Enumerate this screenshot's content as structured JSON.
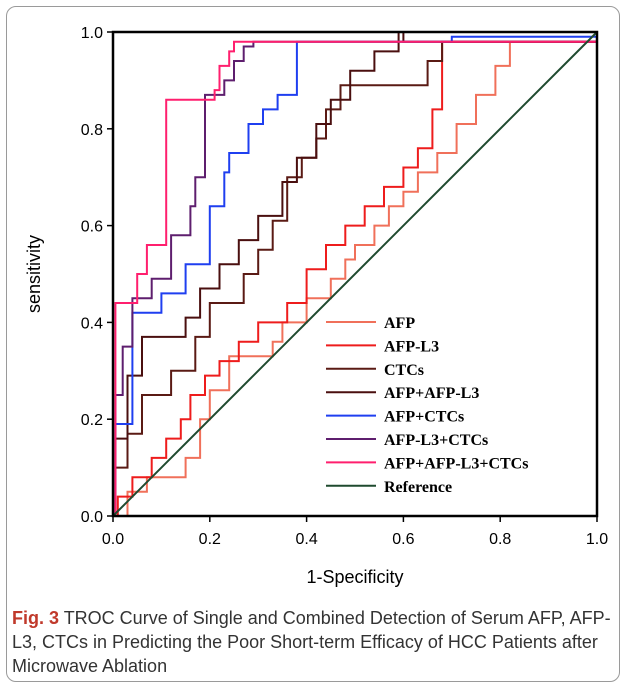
{
  "caption": {
    "label": "Fig. 3",
    "text": " TROC Curve of Single and Combined Detection of Serum AFP, AFP-L3, CTCs in Predicting the Poor Short-term Efficacy of HCC Patients after Microwave Ablation"
  },
  "chart_data": {
    "type": "line",
    "title": "",
    "xlabel": "1-Specificity",
    "ylabel": "sensitivity",
    "xlim": [
      0,
      1
    ],
    "ylim": [
      0,
      1
    ],
    "xticks": [
      "0.0",
      "0.2",
      "0.4",
      "0.6",
      "0.8",
      "1.0"
    ],
    "yticks": [
      "0.0",
      "0.2",
      "0.4",
      "0.6",
      "0.8",
      "1.0"
    ],
    "grid": false,
    "legend_position": "bottom-right",
    "series": [
      {
        "name": "AFP",
        "color": "#f0705a",
        "x": [
          0,
          0.03,
          0.03,
          0.07,
          0.07,
          0.15,
          0.15,
          0.18,
          0.18,
          0.2,
          0.2,
          0.24,
          0.24,
          0.33,
          0.33,
          0.35,
          0.35,
          0.4,
          0.4,
          0.45,
          0.45,
          0.48,
          0.48,
          0.5,
          0.5,
          0.54,
          0.54,
          0.57,
          0.57,
          0.6,
          0.6,
          0.63,
          0.63,
          0.67,
          0.67,
          0.71,
          0.71,
          0.75,
          0.75,
          0.79,
          0.79,
          0.82,
          0.82,
          1.0
        ],
        "y": [
          0,
          0,
          0.05,
          0.05,
          0.08,
          0.08,
          0.12,
          0.12,
          0.2,
          0.2,
          0.26,
          0.26,
          0.33,
          0.33,
          0.36,
          0.36,
          0.4,
          0.4,
          0.45,
          0.45,
          0.49,
          0.49,
          0.53,
          0.53,
          0.56,
          0.56,
          0.6,
          0.6,
          0.64,
          0.64,
          0.67,
          0.67,
          0.71,
          0.71,
          0.75,
          0.75,
          0.81,
          0.81,
          0.87,
          0.87,
          0.93,
          0.93,
          0.98,
          0.98
        ]
      },
      {
        "name": "AFP-L3",
        "color": "#ee1c1c",
        "x": [
          0,
          0.01,
          0.01,
          0.04,
          0.04,
          0.08,
          0.08,
          0.11,
          0.11,
          0.14,
          0.14,
          0.16,
          0.16,
          0.19,
          0.19,
          0.22,
          0.22,
          0.26,
          0.26,
          0.3,
          0.3,
          0.36,
          0.36,
          0.4,
          0.4,
          0.44,
          0.44,
          0.48,
          0.48,
          0.52,
          0.52,
          0.56,
          0.56,
          0.6,
          0.6,
          0.63,
          0.63,
          0.66,
          0.66,
          0.68,
          0.68,
          1.0
        ],
        "y": [
          0,
          0,
          0.04,
          0.04,
          0.08,
          0.08,
          0.12,
          0.12,
          0.16,
          0.16,
          0.2,
          0.2,
          0.25,
          0.25,
          0.29,
          0.29,
          0.32,
          0.32,
          0.36,
          0.36,
          0.4,
          0.4,
          0.44,
          0.44,
          0.51,
          0.51,
          0.56,
          0.56,
          0.6,
          0.6,
          0.64,
          0.64,
          0.68,
          0.68,
          0.72,
          0.72,
          0.76,
          0.76,
          0.84,
          0.84,
          0.98,
          0.98
        ]
      },
      {
        "name": "CTCs",
        "color": "#5a1a14",
        "x": [
          0,
          0.005,
          0.005,
          0.03,
          0.03,
          0.06,
          0.06,
          0.12,
          0.12,
          0.17,
          0.17,
          0.2,
          0.2,
          0.27,
          0.27,
          0.3,
          0.3,
          0.33,
          0.33,
          0.36,
          0.36,
          0.39,
          0.39,
          0.42,
          0.42,
          0.44,
          0.44,
          0.47,
          0.47,
          0.5,
          0.5,
          0.55,
          0.55,
          0.65,
          0.65,
          0.68,
          0.68,
          1.0
        ],
        "y": [
          0,
          0,
          0.1,
          0.1,
          0.17,
          0.17,
          0.25,
          0.25,
          0.3,
          0.3,
          0.37,
          0.37,
          0.44,
          0.44,
          0.5,
          0.5,
          0.55,
          0.55,
          0.61,
          0.61,
          0.7,
          0.7,
          0.74,
          0.74,
          0.78,
          0.78,
          0.84,
          0.84,
          0.89,
          0.89,
          0.89,
          0.89,
          0.89,
          0.89,
          0.94,
          0.94,
          0.98,
          0.98
        ]
      },
      {
        "name": "AFP+AFP-L3",
        "color": "#4a0f0f",
        "x": [
          0,
          0.005,
          0.005,
          0.03,
          0.03,
          0.06,
          0.06,
          0.15,
          0.15,
          0.18,
          0.18,
          0.22,
          0.22,
          0.26,
          0.26,
          0.3,
          0.3,
          0.35,
          0.35,
          0.38,
          0.38,
          0.42,
          0.42,
          0.45,
          0.45,
          0.49,
          0.49,
          0.54,
          0.54,
          0.59,
          0.59,
          0.6,
          0.6,
          1.0
        ],
        "y": [
          0,
          0,
          0.16,
          0.16,
          0.29,
          0.29,
          0.37,
          0.37,
          0.41,
          0.41,
          0.47,
          0.47,
          0.52,
          0.52,
          0.57,
          0.57,
          0.62,
          0.62,
          0.69,
          0.69,
          0.74,
          0.74,
          0.81,
          0.81,
          0.86,
          0.86,
          0.92,
          0.92,
          0.96,
          0.96,
          1.0,
          1.0,
          0.98,
          0.98
        ]
      },
      {
        "name": "AFP+CTCs",
        "color": "#1f3ff0",
        "x": [
          0,
          0.005,
          0.005,
          0.02,
          0.02,
          0.04,
          0.04,
          0.1,
          0.1,
          0.15,
          0.15,
          0.2,
          0.2,
          0.23,
          0.23,
          0.24,
          0.24,
          0.28,
          0.28,
          0.31,
          0.31,
          0.34,
          0.34,
          0.38,
          0.38,
          0.4,
          0.4,
          0.7,
          0.7,
          1.0
        ],
        "y": [
          0,
          0,
          0.19,
          0.19,
          0.19,
          0.19,
          0.42,
          0.42,
          0.46,
          0.46,
          0.52,
          0.52,
          0.64,
          0.64,
          0.71,
          0.71,
          0.75,
          0.75,
          0.81,
          0.81,
          0.84,
          0.84,
          0.87,
          0.87,
          0.98,
          0.98,
          0.98,
          0.98,
          0.99,
          0.99
        ]
      },
      {
        "name": "AFP-L3+CTCs",
        "color": "#5e1e6e",
        "x": [
          0,
          0.005,
          0.005,
          0.02,
          0.02,
          0.04,
          0.04,
          0.06,
          0.06,
          0.08,
          0.08,
          0.12,
          0.12,
          0.16,
          0.16,
          0.17,
          0.17,
          0.19,
          0.19,
          0.2,
          0.2,
          0.23,
          0.23,
          0.25,
          0.25,
          0.27,
          0.27,
          0.29,
          0.29,
          1.0
        ],
        "y": [
          0,
          0,
          0.25,
          0.25,
          0.35,
          0.35,
          0.45,
          0.45,
          0.45,
          0.45,
          0.49,
          0.49,
          0.58,
          0.58,
          0.64,
          0.64,
          0.7,
          0.7,
          0.87,
          0.87,
          0.87,
          0.87,
          0.9,
          0.9,
          0.94,
          0.94,
          0.97,
          0.97,
          0.98,
          0.98
        ]
      },
      {
        "name": "AFP+AFP-L3+CTCs",
        "color": "#ff1f6e",
        "x": [
          0,
          0.005,
          0.005,
          0.05,
          0.05,
          0.07,
          0.07,
          0.11,
          0.11,
          0.21,
          0.21,
          0.22,
          0.22,
          0.24,
          0.24,
          0.25,
          0.25,
          1.0
        ],
        "y": [
          0,
          0,
          0.44,
          0.44,
          0.5,
          0.5,
          0.56,
          0.56,
          0.86,
          0.86,
          0.88,
          0.88,
          0.93,
          0.93,
          0.96,
          0.96,
          0.98,
          0.98
        ]
      },
      {
        "name": "Reference",
        "color": "#1f4a2f",
        "x": [
          0,
          1
        ],
        "y": [
          0,
          1
        ]
      }
    ]
  }
}
